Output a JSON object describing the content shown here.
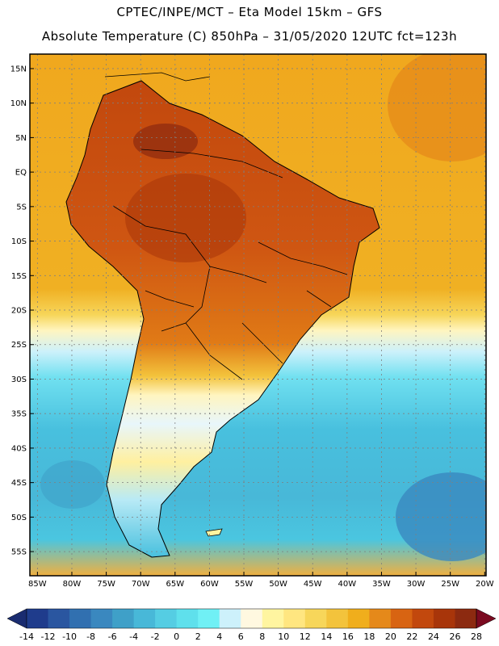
{
  "title_line1": "CPTEC/INPE/MCT –  Eta Model 15km – GFS",
  "title_line2": "Absolute Temperature (C) 850hPa – 31/05/2020 12UTC fct=123h",
  "lat_labels": [
    "15N",
    "10N",
    "5N",
    "EQ",
    "5S",
    "10S",
    "15S",
    "20S",
    "25S",
    "30S",
    "35S",
    "40S",
    "45S",
    "50S",
    "55S"
  ],
  "lat_values": [
    15,
    10,
    5,
    0,
    -5,
    -10,
    -15,
    -20,
    -25,
    -30,
    -35,
    -40,
    -45,
    -50,
    -55
  ],
  "lon_labels": [
    "85W",
    "80W",
    "75W",
    "70W",
    "65W",
    "60W",
    "55W",
    "50W",
    "45W",
    "40W",
    "35W",
    "30W",
    "25W",
    "20W"
  ],
  "lon_values": [
    -85,
    -80,
    -75,
    -70,
    -65,
    -60,
    -55,
    -50,
    -45,
    -40,
    -35,
    -30,
    -25,
    -20
  ],
  "colorbar": {
    "labels": [
      "-14",
      "-12",
      "-10",
      "-8",
      "-6",
      "-4",
      "-2",
      "0",
      "2",
      "4",
      "6",
      "8",
      "10",
      "12",
      "14",
      "16",
      "18",
      "20",
      "22",
      "24",
      "26",
      "28"
    ],
    "colors": [
      "#1f3c8c",
      "#2a56a0",
      "#3170b0",
      "#3a88bf",
      "#3fa0c8",
      "#48b8d8",
      "#55cde3",
      "#5fe0ec",
      "#70f0f5",
      "#cdf1fb",
      "#fff8e0",
      "#fff5a0",
      "#ffe680",
      "#f7d65a",
      "#f3c33c",
      "#f0ae1c",
      "#e5891a",
      "#d86412",
      "#c2480d",
      "#a8350a",
      "#8c2a10"
    ],
    "low_color": "#1a2c70",
    "high_color": "#7a0a20"
  },
  "colors": {
    "frame": "#000000",
    "grid": "#7f7f7f",
    "ocean_warm": "#f0a81e",
    "ocean_cold": "#48b8d8"
  }
}
